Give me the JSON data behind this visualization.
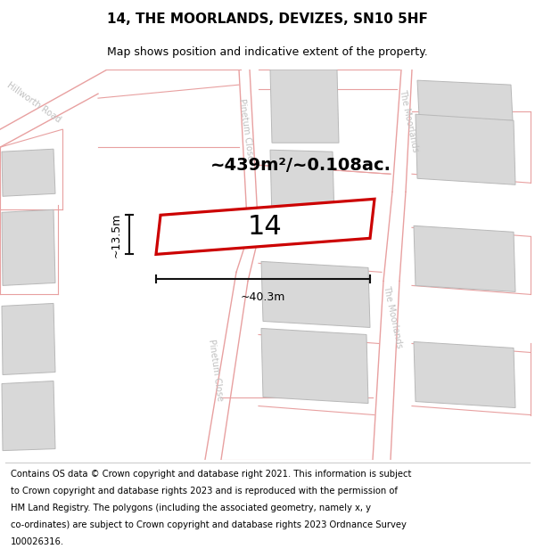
{
  "title": "14, THE MOORLANDS, DEVIZES, SN10 5HF",
  "subtitle": "Map shows position and indicative extent of the property.",
  "footer_lines": [
    "Contains OS data © Crown copyright and database right 2021. This information is subject",
    "to Crown copyright and database rights 2023 and is reproduced with the permission of",
    "HM Land Registry. The polygons (including the associated geometry, namely x, y",
    "co-ordinates) are subject to Crown copyright and database rights 2023 Ordnance Survey",
    "100026316."
  ],
  "area_label": "~439m²/~0.108ac.",
  "plot_number": "14",
  "width_label": "~40.3m",
  "height_label": "~13.5m",
  "map_bg": "#f2f2f2",
  "road_line_color": "#e8a0a0",
  "building_color": "#d8d8d8",
  "building_outline": "#b8b8b8",
  "plot_fill": "#ffffff",
  "plot_edge_color": "#cc0000",
  "dim_line_color": "#111111",
  "street_label_color": "#c0c0c0",
  "title_fontsize": 11,
  "subtitle_fontsize": 9,
  "footer_fontsize": 7.2,
  "plot_number_fontsize": 22,
  "area_fontsize": 14
}
